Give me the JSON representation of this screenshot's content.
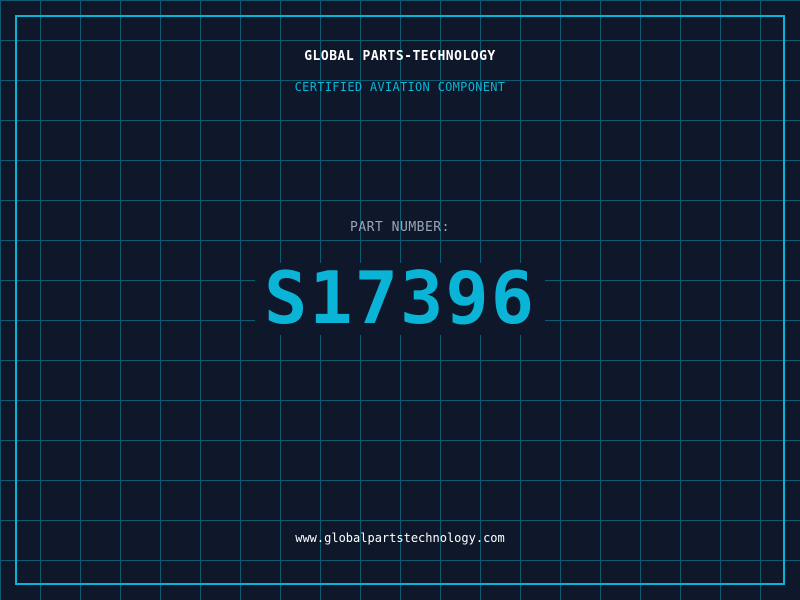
{
  "brand": "GLOBAL PARTS-TECHNOLOGY",
  "subtitle": "CERTIFIED AVIATION COMPONENT",
  "part_label": "PART NUMBER:",
  "part_number": "S17396",
  "website": "www.globalpartstechnology.com",
  "colors": {
    "background": "#0f172a",
    "accent": "#0ab4d6",
    "grid": "#0e5a70"
  }
}
